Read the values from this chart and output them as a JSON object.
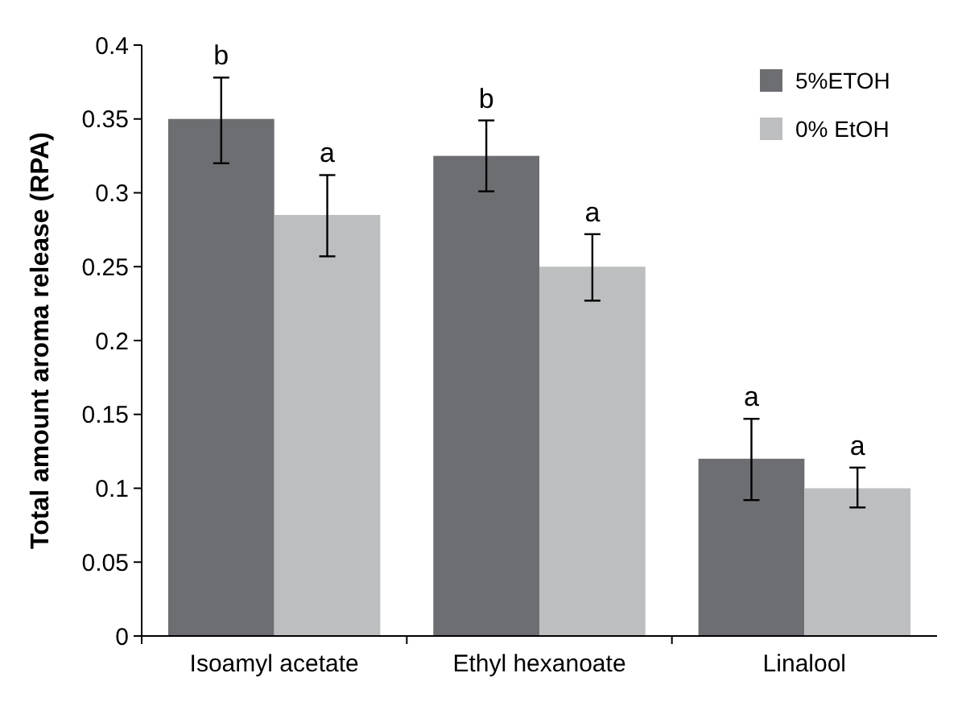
{
  "chart_data": {
    "type": "bar",
    "ylabel": "Total amount aroma release (RPA)",
    "categories": [
      "Isoamyl acetate",
      "Ethyl hexanoate",
      "Linalool"
    ],
    "series": [
      {
        "name": "5%ETOH",
        "color": "#6d6e71",
        "values": [
          0.35,
          0.325,
          0.12
        ],
        "errors": [
          [
            0.32,
            0.378
          ],
          [
            0.301,
            0.349
          ],
          [
            0.092,
            0.147
          ]
        ]
      },
      {
        "name": "0% EtOH",
        "color": "#bcbec0",
        "values": [
          0.285,
          0.25,
          0.1
        ],
        "errors": [
          [
            0.257,
            0.312
          ],
          [
            0.227,
            0.272
          ],
          [
            0.087,
            0.114
          ]
        ]
      }
    ],
    "ylim": [
      0,
      0.4
    ],
    "yticks": [
      {
        "value": 0,
        "label": "0"
      },
      0.05,
      {
        "value": 0.1,
        "label": "0.1"
      },
      0.15,
      {
        "value": 0.2,
        "label": "0.2"
      },
      0.25,
      {
        "value": 0.3,
        "label": "0.3"
      },
      0.35,
      {
        "value": 0.4,
        "label": "0.4"
      }
    ],
    "grid": false,
    "legend": "top right",
    "annotations": [
      "b",
      "a",
      "b",
      "a",
      "a",
      "a"
    ]
  }
}
